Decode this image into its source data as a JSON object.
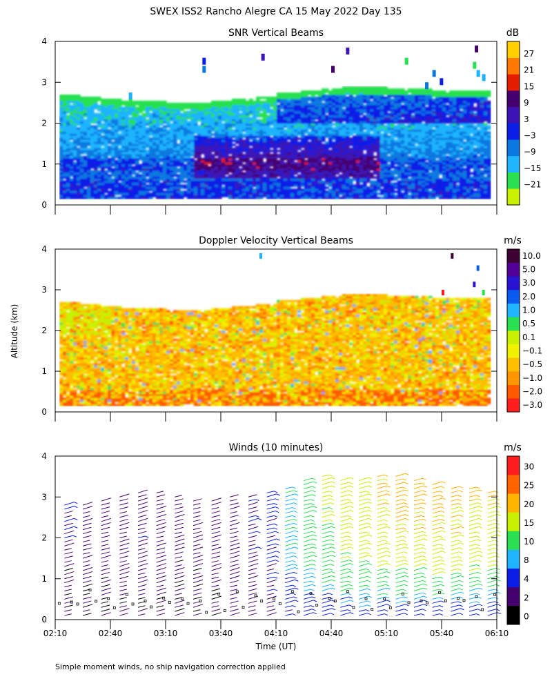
{
  "page": {
    "title": "SWEX ISS2 Rancho Alegre CA  15 May 2022 Day 135",
    "shared_ylabel": "Altitude (km)",
    "xlabel": "Time (UT)",
    "footnote": "Simple moment winds, no ship navigation correction applied"
  },
  "colors": {
    "snr": [
      "#c8f000",
      "#28e050",
      "#1eb4ff",
      "#0b78e0",
      "#0a1ee6",
      "#3c14b4",
      "#46006e",
      "#e61e00",
      "#ff7800",
      "#ffd000"
    ],
    "doppler": [
      "#ff1e1e",
      "#ff5a00",
      "#ff9600",
      "#ffbe00",
      "#f0f000",
      "#c8f000",
      "#28e050",
      "#1eb4ff",
      "#0b5af0",
      "#2814d0",
      "#500096",
      "#3c0032"
    ],
    "winds": [
      "#000000",
      "#46006e",
      "#0a1ee6",
      "#1eb4ff",
      "#28e050",
      "#c8f000",
      "#ffb400",
      "#ff6400",
      "#ff1e1e"
    ]
  },
  "chart_data": [
    {
      "type": "heatmap",
      "title": "SNR Vertical Beams",
      "ylabel": "Altitude (km)",
      "ylim": [
        0,
        4
      ],
      "yticks": [
        "0",
        "1",
        "2",
        "3",
        "4"
      ],
      "xlim": [
        "02:10",
        "06:10"
      ],
      "colorbar_unit": "dB",
      "colorbar_labels": [
        "27",
        "21",
        "15",
        "9",
        "3",
        "−3",
        "−9",
        "−15",
        "−21"
      ],
      "colorbar_range": [
        -24,
        33
      ],
      "echo_top_km": [
        2.65,
        2.6,
        2.55,
        2.5,
        2.5,
        2.45,
        2.45,
        2.5,
        2.55,
        2.6,
        2.7,
        2.75,
        2.8,
        2.85,
        2.85,
        2.8,
        2.8,
        2.75,
        2.75,
        2.75
      ],
      "echo_bottom_km": 0.15,
      "peak_snr_db": 27,
      "scatter_altitude_km": [
        3.7,
        3.4,
        2.6
      ]
    },
    {
      "type": "heatmap",
      "title": "Doppler Velocity Vertical Beams",
      "ylabel": "Altitude (km)",
      "ylim": [
        0,
        4
      ],
      "yticks": [
        "0",
        "1",
        "2",
        "3",
        "4"
      ],
      "xlim": [
        "02:10",
        "06:10"
      ],
      "colorbar_unit": "m/s",
      "colorbar_labels": [
        "10.0",
        "5.0",
        "3.0",
        "2.0",
        "1.0",
        "0.5",
        "0.1",
        "−0.1",
        "−0.5",
        "−1.0",
        "−2.0",
        "−3.0"
      ],
      "echo_top_km": [
        2.65,
        2.6,
        2.55,
        2.5,
        2.5,
        2.45,
        2.45,
        2.5,
        2.55,
        2.6,
        2.7,
        2.75,
        2.8,
        2.85,
        2.85,
        2.8,
        2.8,
        2.75,
        2.75,
        2.75
      ],
      "echo_bottom_km": 0.15,
      "dominant_velocity_ms": -0.3
    },
    {
      "type": "scatter",
      "title": "Winds (10 minutes)",
      "ylabel": "Altitude (km)",
      "ylim": [
        0,
        4
      ],
      "yticks": [
        "0",
        "1",
        "2",
        "3",
        "4"
      ],
      "xlabel": "Time (UT)",
      "xticks": [
        "02:10",
        "02:40",
        "03:10",
        "03:40",
        "04:10",
        "04:40",
        "05:10",
        "05:40",
        "06:10"
      ],
      "x_minutes": [
        0,
        240
      ],
      "colorbar_unit": "m/s",
      "colorbar_labels": [
        "30",
        "25",
        "20",
        "15",
        "10",
        "8",
        "4",
        "2",
        "0"
      ],
      "colorbar_bounds": [
        0,
        2,
        4,
        8,
        10,
        15,
        20,
        25,
        30,
        35
      ],
      "profile_times_min": [
        5,
        15,
        25,
        35,
        45,
        55,
        65,
        75,
        85,
        95,
        105,
        115,
        125,
        135,
        145,
        155,
        165,
        175,
        185,
        195,
        205,
        215,
        225,
        235
      ],
      "profile_top_km": [
        2.9,
        2.85,
        3.0,
        3.1,
        3.2,
        3.15,
        3.05,
        3.0,
        3.0,
        3.05,
        3.1,
        3.2,
        3.3,
        3.5,
        3.55,
        3.5,
        3.5,
        3.55,
        3.55,
        3.45,
        3.35,
        3.3,
        3.25,
        3.2
      ],
      "speed_profiles_ms": [
        [
          2,
          3,
          3.5
        ],
        [
          2,
          3,
          3
        ],
        [
          2,
          3,
          3
        ],
        [
          2,
          3,
          3
        ],
        [
          2,
          3,
          3.5
        ],
        [
          2,
          3,
          3
        ],
        [
          2,
          3,
          3
        ],
        [
          2,
          3,
          3
        ],
        [
          2,
          3,
          3
        ],
        [
          3,
          3,
          3
        ],
        [
          3,
          3,
          4
        ],
        [
          3,
          4,
          5
        ],
        [
          4,
          10,
          10
        ],
        [
          4,
          12,
          14
        ],
        [
          5,
          14,
          16
        ],
        [
          5,
          15,
          18
        ],
        [
          5,
          16,
          19
        ],
        [
          5,
          17,
          20
        ],
        [
          5,
          18,
          21
        ],
        [
          5,
          18,
          22
        ],
        [
          5,
          18,
          22
        ],
        [
          5,
          18,
          21
        ],
        [
          5,
          17,
          20
        ],
        [
          5,
          16,
          20
        ]
      ],
      "direction_from_deg": [
        300,
        310,
        320
      ]
    }
  ]
}
